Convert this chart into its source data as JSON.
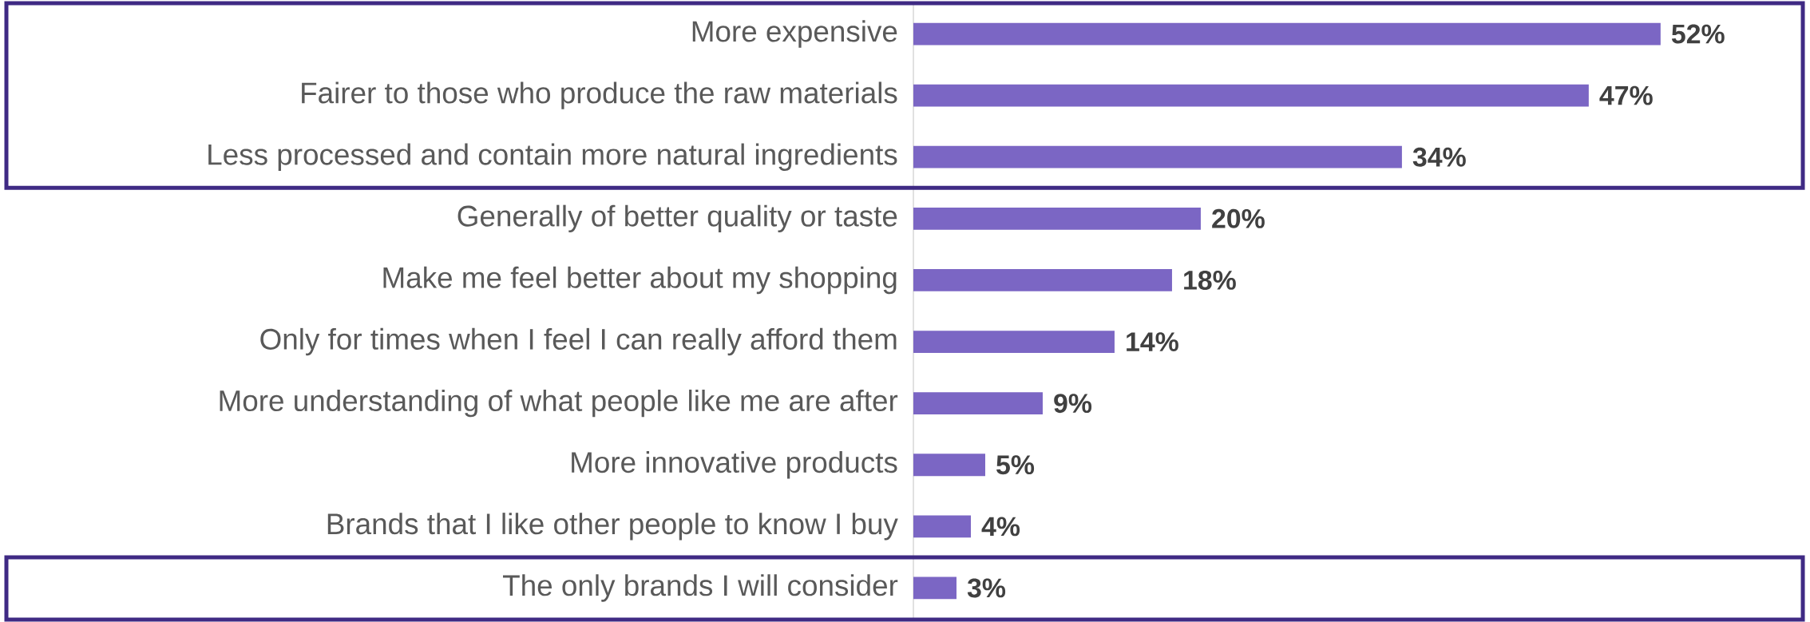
{
  "chart_data": {
    "type": "bar",
    "orientation": "horizontal",
    "color": "#7b66c4",
    "categories": [
      "More expensive",
      "Fairer to those who produce the raw materials",
      "Less processed and contain more natural ingredients",
      "Generally of better quality or taste",
      "Make me feel better about my shopping",
      "Only for times when I feel I can really afford them",
      "More understanding of what people like me are after",
      "More innovative products",
      "Brands that I like other people to know I buy",
      "The only brands I will consider"
    ],
    "values": [
      52,
      47,
      34,
      20,
      18,
      14,
      9,
      5,
      4,
      3
    ],
    "value_labels": [
      "52%",
      "47%",
      "34%",
      "20%",
      "18%",
      "14%",
      "9%",
      "5%",
      "4%",
      "3%"
    ]
  }
}
